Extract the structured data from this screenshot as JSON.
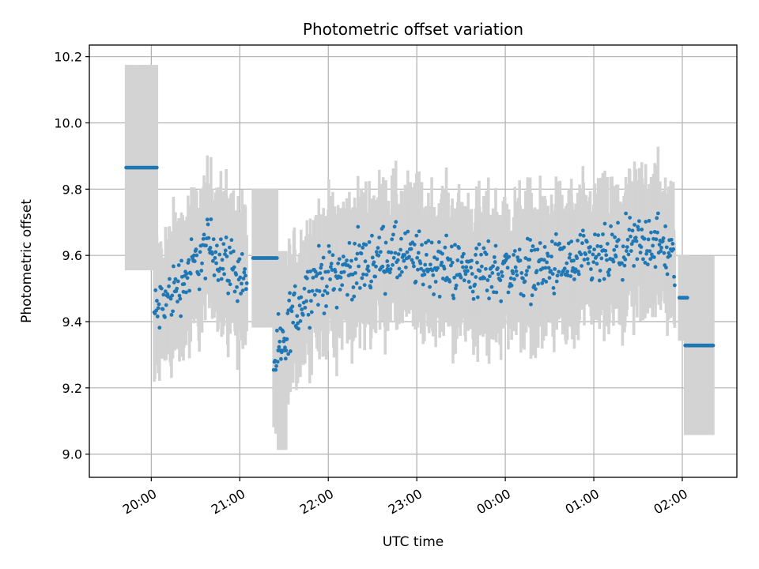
{
  "chart_data": {
    "type": "scatter",
    "title": "Photometric offset variation",
    "xlabel": "UTC time",
    "ylabel": "Photometric offset",
    "xlim": [
      "19:18",
      "02:37"
    ],
    "ylim": [
      8.93,
      10.235
    ],
    "x_ticks": [
      "20:00",
      "21:00",
      "22:00",
      "23:00",
      "00:00",
      "01:00",
      "02:00"
    ],
    "y_ticks": [
      9.0,
      9.2,
      9.4,
      9.6,
      9.8,
      10.0,
      10.2
    ],
    "grid": true,
    "colors": {
      "marker": "#1f77b4",
      "errorbar": "#d3d3d3"
    },
    "segments": [
      {
        "start": "19:43",
        "end": "20:04",
        "value": 9.865,
        "error": 0.31
      },
      {
        "start": "21:09",
        "end": "21:26",
        "value": 9.592,
        "error": 0.21
      },
      {
        "start": "21:26",
        "end": "21:32",
        "value": 9.313,
        "error": 0.3
      },
      {
        "start": "01:58",
        "end": "02:04",
        "value": 9.472,
        "error": 0.13
      },
      {
        "start": "02:02",
        "end": "02:21",
        "value": 9.328,
        "error": 0.27
      }
    ],
    "trend": [
      {
        "start": "20:02",
        "end": "20:20",
        "from": 9.42,
        "to": 9.52
      },
      {
        "start": "20:20",
        "end": "20:40",
        "from": 9.52,
        "to": 9.63
      },
      {
        "start": "20:40",
        "end": "21:05",
        "from": 9.63,
        "to": 9.52
      },
      {
        "start": "21:23",
        "end": "21:33",
        "from": 9.28,
        "to": 9.34
      },
      {
        "start": "21:33",
        "end": "21:50",
        "from": 9.4,
        "to": 9.52
      },
      {
        "start": "21:50",
        "end": "22:40",
        "from": 9.52,
        "to": 9.6
      },
      {
        "start": "22:40",
        "end": "23:40",
        "from": 9.6,
        "to": 9.55
      },
      {
        "start": "23:40",
        "end": "00:45",
        "from": 9.55,
        "to": 9.57
      },
      {
        "start": "00:45",
        "end": "01:15",
        "from": 9.57,
        "to": 9.6
      },
      {
        "start": "01:15",
        "end": "01:40",
        "from": 9.6,
        "to": 9.65
      },
      {
        "start": "01:40",
        "end": "01:55",
        "from": 9.65,
        "to": 9.58
      }
    ]
  }
}
